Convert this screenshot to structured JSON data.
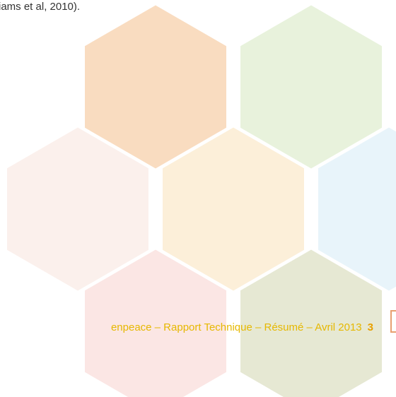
{
  "body": {
    "text_fragment": "iams et al, 2010)."
  },
  "footer": {
    "text": "enpeace – Rapport Technique – Résumé – Avril 2013",
    "page_number": "3"
  }
}
